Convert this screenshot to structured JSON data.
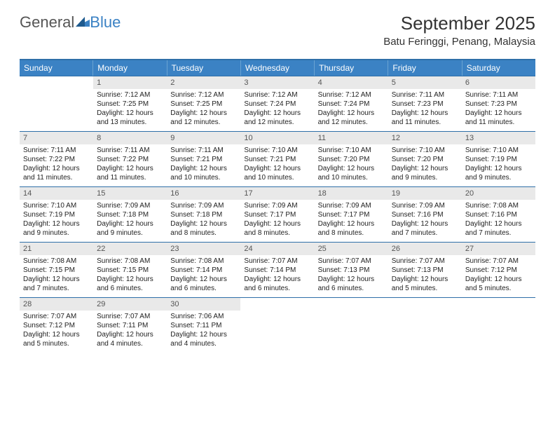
{
  "logo": {
    "text1": "General",
    "text2": "Blue"
  },
  "title": "September 2025",
  "location": "Batu Feringgi, Penang, Malaysia",
  "colors": {
    "header_bg": "#3b82c4",
    "border": "#2e6fa8",
    "daynum_bg": "#e9e9e9",
    "text": "#333333"
  },
  "weekdays": [
    "Sunday",
    "Monday",
    "Tuesday",
    "Wednesday",
    "Thursday",
    "Friday",
    "Saturday"
  ],
  "weeks": [
    [
      null,
      {
        "n": "1",
        "sr": "7:12 AM",
        "ss": "7:25 PM",
        "dl": "12 hours and 13 minutes."
      },
      {
        "n": "2",
        "sr": "7:12 AM",
        "ss": "7:25 PM",
        "dl": "12 hours and 12 minutes."
      },
      {
        "n": "3",
        "sr": "7:12 AM",
        "ss": "7:24 PM",
        "dl": "12 hours and 12 minutes."
      },
      {
        "n": "4",
        "sr": "7:12 AM",
        "ss": "7:24 PM",
        "dl": "12 hours and 12 minutes."
      },
      {
        "n": "5",
        "sr": "7:11 AM",
        "ss": "7:23 PM",
        "dl": "12 hours and 11 minutes."
      },
      {
        "n": "6",
        "sr": "7:11 AM",
        "ss": "7:23 PM",
        "dl": "12 hours and 11 minutes."
      }
    ],
    [
      {
        "n": "7",
        "sr": "7:11 AM",
        "ss": "7:22 PM",
        "dl": "12 hours and 11 minutes."
      },
      {
        "n": "8",
        "sr": "7:11 AM",
        "ss": "7:22 PM",
        "dl": "12 hours and 11 minutes."
      },
      {
        "n": "9",
        "sr": "7:11 AM",
        "ss": "7:21 PM",
        "dl": "12 hours and 10 minutes."
      },
      {
        "n": "10",
        "sr": "7:10 AM",
        "ss": "7:21 PM",
        "dl": "12 hours and 10 minutes."
      },
      {
        "n": "11",
        "sr": "7:10 AM",
        "ss": "7:20 PM",
        "dl": "12 hours and 10 minutes."
      },
      {
        "n": "12",
        "sr": "7:10 AM",
        "ss": "7:20 PM",
        "dl": "12 hours and 9 minutes."
      },
      {
        "n": "13",
        "sr": "7:10 AM",
        "ss": "7:19 PM",
        "dl": "12 hours and 9 minutes."
      }
    ],
    [
      {
        "n": "14",
        "sr": "7:10 AM",
        "ss": "7:19 PM",
        "dl": "12 hours and 9 minutes."
      },
      {
        "n": "15",
        "sr": "7:09 AM",
        "ss": "7:18 PM",
        "dl": "12 hours and 9 minutes."
      },
      {
        "n": "16",
        "sr": "7:09 AM",
        "ss": "7:18 PM",
        "dl": "12 hours and 8 minutes."
      },
      {
        "n": "17",
        "sr": "7:09 AM",
        "ss": "7:17 PM",
        "dl": "12 hours and 8 minutes."
      },
      {
        "n": "18",
        "sr": "7:09 AM",
        "ss": "7:17 PM",
        "dl": "12 hours and 8 minutes."
      },
      {
        "n": "19",
        "sr": "7:09 AM",
        "ss": "7:16 PM",
        "dl": "12 hours and 7 minutes."
      },
      {
        "n": "20",
        "sr": "7:08 AM",
        "ss": "7:16 PM",
        "dl": "12 hours and 7 minutes."
      }
    ],
    [
      {
        "n": "21",
        "sr": "7:08 AM",
        "ss": "7:15 PM",
        "dl": "12 hours and 7 minutes."
      },
      {
        "n": "22",
        "sr": "7:08 AM",
        "ss": "7:15 PM",
        "dl": "12 hours and 6 minutes."
      },
      {
        "n": "23",
        "sr": "7:08 AM",
        "ss": "7:14 PM",
        "dl": "12 hours and 6 minutes."
      },
      {
        "n": "24",
        "sr": "7:07 AM",
        "ss": "7:14 PM",
        "dl": "12 hours and 6 minutes."
      },
      {
        "n": "25",
        "sr": "7:07 AM",
        "ss": "7:13 PM",
        "dl": "12 hours and 6 minutes."
      },
      {
        "n": "26",
        "sr": "7:07 AM",
        "ss": "7:13 PM",
        "dl": "12 hours and 5 minutes."
      },
      {
        "n": "27",
        "sr": "7:07 AM",
        "ss": "7:12 PM",
        "dl": "12 hours and 5 minutes."
      }
    ],
    [
      {
        "n": "28",
        "sr": "7:07 AM",
        "ss": "7:12 PM",
        "dl": "12 hours and 5 minutes."
      },
      {
        "n": "29",
        "sr": "7:07 AM",
        "ss": "7:11 PM",
        "dl": "12 hours and 4 minutes."
      },
      {
        "n": "30",
        "sr": "7:06 AM",
        "ss": "7:11 PM",
        "dl": "12 hours and 4 minutes."
      },
      null,
      null,
      null,
      null
    ]
  ],
  "labels": {
    "sunrise": "Sunrise:",
    "sunset": "Sunset:",
    "daylight": "Daylight:"
  }
}
